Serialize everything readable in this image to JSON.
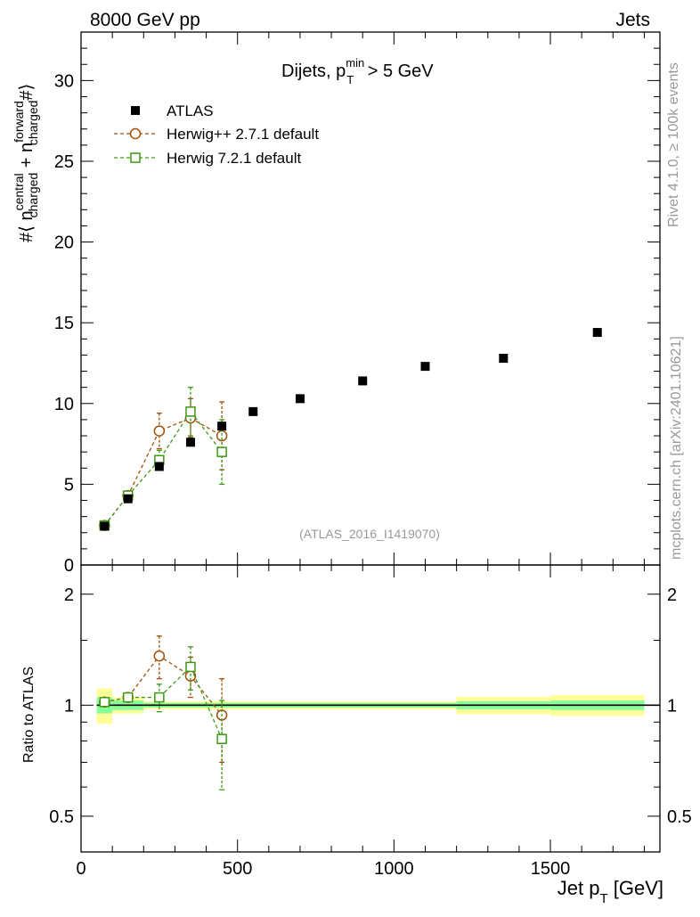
{
  "header": {
    "left": "8000 GeV pp",
    "right": "Jets"
  },
  "side": {
    "rivet": "Rivet 4.1.0, ≥ 100k events",
    "mcplots": "mcplots.cern.ch [arXiv:2401.10621]"
  },
  "colors": {
    "atlas": "#000000",
    "herwigpp": "#a0500a",
    "herwig7": "#3c9a14",
    "band_yellow": "#ffff99",
    "band_green": "#88ff99",
    "axis": "#000000",
    "watermark": "#999999"
  },
  "chart_data": [
    {
      "type": "scatter",
      "title_parts": {
        "main": "Dijets, p",
        "sub": "T",
        "sup": "min",
        "tail": " > 5 GeV"
      },
      "analysis_id": "(ATLAS_2016_I1419070)",
      "ylabel_parts": {
        "pre": "#⟨ n",
        "sup1": "central",
        "sub1": "charged",
        "mid": " + n",
        "sup2": "forward",
        "sub2": "charged",
        "post": "#⟩"
      },
      "xlim": [
        0,
        1850
      ],
      "ylim": [
        0,
        33
      ],
      "yticks": [
        0,
        5,
        10,
        15,
        20,
        25,
        30
      ],
      "legend": [
        {
          "key": "atlas",
          "label": "ATLAS"
        },
        {
          "key": "herwigpp",
          "label": "Herwig++ 2.7.1 default"
        },
        {
          "key": "herwig7",
          "label": "Herwig 7.2.1 default"
        }
      ],
      "series": [
        {
          "key": "atlas",
          "name": "ATLAS",
          "marker": "filled-square",
          "x": [
            75,
            150,
            250,
            350,
            450,
            550,
            700,
            900,
            1100,
            1350,
            1650
          ],
          "xerr": [
            25,
            50,
            50,
            50,
            50,
            50,
            100,
            100,
            100,
            150,
            150
          ],
          "y": [
            2.4,
            4.1,
            6.1,
            7.6,
            8.6,
            9.5,
            10.3,
            11.4,
            12.3,
            12.8,
            14.4
          ]
        },
        {
          "key": "herwigpp",
          "name": "Herwig++ 2.7.1 default",
          "marker": "open-circle",
          "x": [
            75,
            150,
            250,
            350,
            450
          ],
          "y": [
            2.45,
            4.3,
            8.3,
            9.1,
            8.0
          ],
          "yerr": [
            0.1,
            0.15,
            1.1,
            1.2,
            2.1
          ]
        },
        {
          "key": "herwig7",
          "name": "Herwig 7.2.1 default",
          "marker": "open-square",
          "x": [
            75,
            150,
            250,
            350,
            450
          ],
          "y": [
            2.45,
            4.3,
            6.5,
            9.5,
            7.0
          ],
          "yerr": [
            0.1,
            0.15,
            0.6,
            1.5,
            2.0
          ]
        }
      ]
    },
    {
      "type": "scatter",
      "ylabel": "Ratio to ATLAS",
      "xlabel_parts": {
        "main": "Jet p",
        "sub": "T",
        "tail": " [GeV]"
      },
      "xlim": [
        0,
        1850
      ],
      "ylim_log": [
        0.4,
        2.4
      ],
      "yticks": [
        0.5,
        1,
        2
      ],
      "ytick_labels": [
        "0.5",
        "1",
        "2"
      ],
      "xticks": [
        0,
        500,
        1000,
        1500
      ],
      "xtick_labels": [
        "0",
        "500",
        "1000",
        "1500"
      ],
      "bands": [
        {
          "x0": 50,
          "x1": 100,
          "green": [
            0.95,
            1.05
          ],
          "yellow": [
            0.89,
            1.11
          ]
        },
        {
          "x0": 100,
          "x1": 200,
          "green": [
            0.97,
            1.03
          ],
          "yellow": [
            0.95,
            1.05
          ]
        },
        {
          "x0": 200,
          "x1": 1200,
          "green": [
            0.985,
            1.015
          ],
          "yellow": [
            0.975,
            1.025
          ]
        },
        {
          "x0": 1200,
          "x1": 1500,
          "green": [
            0.975,
            1.025
          ],
          "yellow": [
            0.945,
            1.055
          ]
        },
        {
          "x0": 1500,
          "x1": 1800,
          "green": [
            0.97,
            1.03
          ],
          "yellow": [
            0.935,
            1.065
          ]
        }
      ],
      "series": [
        {
          "key": "herwigpp",
          "name": "Herwig++ 2.7.1 default",
          "marker": "open-circle",
          "x": [
            75,
            150,
            250,
            350,
            450
          ],
          "y": [
            1.02,
            1.05,
            1.36,
            1.2,
            0.94
          ],
          "yerr": [
            0.02,
            0.02,
            0.18,
            0.15,
            0.24
          ]
        },
        {
          "key": "herwig7",
          "name": "Herwig 7.2.1 default",
          "marker": "open-square",
          "x": [
            75,
            150,
            250,
            350,
            450
          ],
          "y": [
            1.02,
            1.05,
            1.05,
            1.27,
            0.81
          ],
          "yerr": [
            0.02,
            0.02,
            0.09,
            0.17,
            0.22
          ]
        }
      ]
    }
  ]
}
